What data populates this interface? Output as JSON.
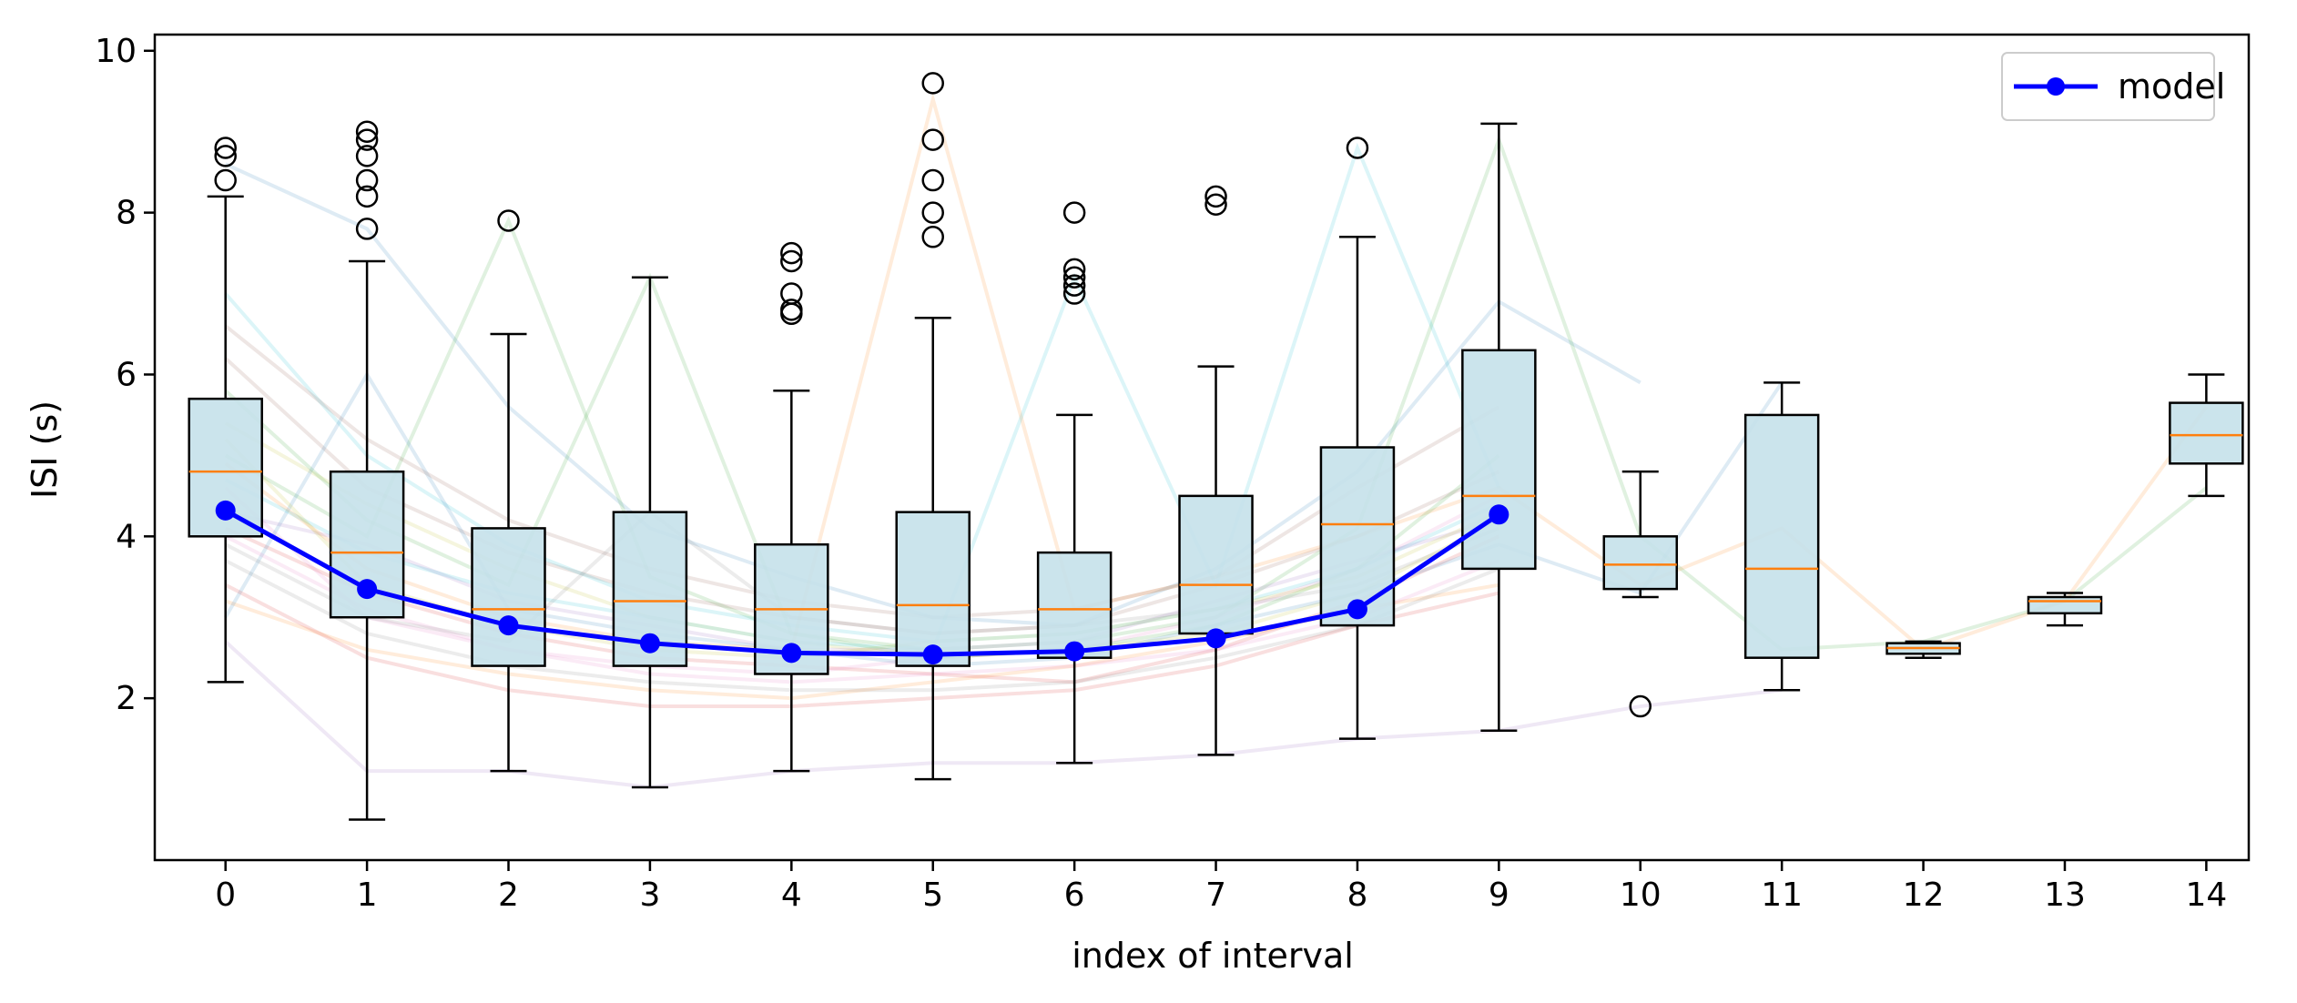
{
  "chart_data": {
    "type": "box",
    "xlabel": "index of interval",
    "ylabel": "ISI (s)",
    "x_ticks": [
      "0",
      "1",
      "2",
      "3",
      "4",
      "5",
      "6",
      "7",
      "8",
      "9",
      "10",
      "11",
      "12",
      "13",
      "14"
    ],
    "y_ticks": [
      "2",
      "4",
      "6",
      "8",
      "10"
    ],
    "xlim": [
      -0.5,
      14.3
    ],
    "ylim": [
      0.0,
      10.2
    ],
    "legend": {
      "placement": "top-right",
      "entries": [
        "model"
      ]
    },
    "colors": {
      "box_fill": "#c5e1ea",
      "median": "#ff7f0e",
      "model": "#0000ff",
      "whisker": "#000000"
    },
    "boxes": [
      {
        "x": 0,
        "whislo": 2.2,
        "q1": 4.0,
        "med": 4.8,
        "q3": 5.7,
        "whishi": 8.2,
        "fliers": [
          8.4,
          8.7,
          8.8
        ]
      },
      {
        "x": 1,
        "whislo": 0.5,
        "q1": 3.0,
        "med": 3.8,
        "q3": 4.8,
        "whishi": 7.4,
        "fliers": [
          7.8,
          8.2,
          8.4,
          8.7,
          8.9,
          9.0
        ]
      },
      {
        "x": 2,
        "whislo": 1.1,
        "q1": 2.4,
        "med": 3.1,
        "q3": 4.1,
        "whishi": 6.5,
        "fliers": [
          7.9
        ]
      },
      {
        "x": 3,
        "whislo": 0.9,
        "q1": 2.4,
        "med": 3.2,
        "q3": 4.3,
        "whishi": 7.2,
        "fliers": []
      },
      {
        "x": 4,
        "whislo": 1.1,
        "q1": 2.3,
        "med": 3.1,
        "q3": 3.9,
        "whishi": 5.8,
        "fliers": [
          6.75,
          6.8,
          7.0,
          7.4,
          7.5
        ]
      },
      {
        "x": 5,
        "whislo": 1.0,
        "q1": 2.4,
        "med": 3.15,
        "q3": 4.3,
        "whishi": 6.7,
        "fliers": [
          7.7,
          8.0,
          8.4,
          8.9,
          9.6
        ]
      },
      {
        "x": 6,
        "whislo": 1.2,
        "q1": 2.5,
        "med": 3.1,
        "q3": 3.8,
        "whishi": 5.5,
        "fliers": [
          7.0,
          7.1,
          7.2,
          7.3,
          8.0
        ]
      },
      {
        "x": 7,
        "whislo": 1.3,
        "q1": 2.8,
        "med": 3.4,
        "q3": 4.5,
        "whishi": 6.1,
        "fliers": [
          8.1,
          8.2
        ]
      },
      {
        "x": 8,
        "whislo": 1.5,
        "q1": 2.9,
        "med": 4.15,
        "q3": 5.1,
        "whishi": 7.7,
        "fliers": [
          8.8
        ]
      },
      {
        "x": 9,
        "whislo": 1.6,
        "q1": 3.6,
        "med": 4.5,
        "q3": 6.3,
        "whishi": 9.1,
        "fliers": []
      },
      {
        "x": 10,
        "whislo": 3.25,
        "q1": 3.35,
        "med": 3.65,
        "q3": 4.0,
        "whishi": 4.8,
        "fliers": [
          1.9
        ]
      },
      {
        "x": 11,
        "whislo": 2.1,
        "q1": 2.5,
        "med": 3.6,
        "q3": 5.5,
        "whishi": 5.9,
        "fliers": []
      },
      {
        "x": 12,
        "whislo": 2.5,
        "q1": 2.55,
        "med": 2.62,
        "q3": 2.68,
        "whishi": 2.7,
        "fliers": []
      },
      {
        "x": 13,
        "whislo": 2.9,
        "q1": 3.05,
        "med": 3.2,
        "q3": 3.25,
        "whishi": 3.3,
        "fliers": []
      },
      {
        "x": 14,
        "whislo": 4.5,
        "q1": 4.9,
        "med": 5.25,
        "q3": 5.65,
        "whishi": 6.0,
        "fliers": []
      }
    ],
    "series": [
      {
        "name": "model",
        "x": [
          0,
          1,
          2,
          3,
          4,
          5,
          6,
          7,
          8,
          9
        ],
        "values": [
          4.32,
          3.35,
          2.9,
          2.68,
          2.56,
          2.54,
          2.58,
          2.74,
          3.1,
          4.27
        ]
      }
    ],
    "background_traces": [
      {
        "color": "#1f77b4",
        "values": [
          8.6,
          7.8,
          5.6,
          4.1,
          3.5,
          3.0,
          2.9,
          3.6,
          4.8,
          6.9,
          5.9
        ]
      },
      {
        "color": "#ff7f0e",
        "values": [
          3.2,
          2.6,
          2.3,
          2.1,
          2.0,
          2.2,
          2.4,
          2.7,
          3.1,
          3.4
        ]
      },
      {
        "color": "#2ca02c",
        "values": [
          5.0,
          4.0,
          7.9,
          3.5,
          2.8,
          2.6,
          2.7,
          3.0,
          4.1,
          8.9,
          4.0,
          2.6,
          2.7,
          3.2,
          4.6
        ]
      },
      {
        "color": "#d62728",
        "values": [
          4.1,
          3.3,
          2.8,
          2.5,
          2.4,
          2.3,
          2.2,
          2.6,
          3.2,
          4.0
        ]
      },
      {
        "color": "#9467bd",
        "values": [
          2.7,
          1.1,
          1.1,
          0.9,
          1.1,
          1.2,
          1.2,
          1.3,
          1.5,
          1.6,
          1.9,
          2.1
        ]
      },
      {
        "color": "#8c564b",
        "values": [
          6.2,
          4.6,
          3.8,
          3.3,
          3.0,
          2.8,
          2.9,
          3.4,
          4.0,
          4.8
        ]
      },
      {
        "color": "#e377c2",
        "values": [
          4.6,
          3.0,
          2.6,
          2.4,
          2.3,
          2.5,
          2.6,
          3.0,
          3.6,
          4.5
        ]
      },
      {
        "color": "#7f7f7f",
        "values": [
          3.7,
          2.8,
          2.4,
          2.2,
          2.1,
          2.1,
          2.2,
          2.5,
          2.9,
          3.6
        ]
      },
      {
        "color": "#bcbd22",
        "values": [
          5.4,
          4.4,
          3.6,
          3.0,
          2.7,
          2.5,
          2.6,
          2.8,
          3.3,
          4.2
        ]
      },
      {
        "color": "#17becf",
        "values": [
          7.0,
          5.0,
          3.9,
          3.2,
          2.9,
          2.7,
          2.8,
          3.1,
          3.6,
          4.4
        ]
      },
      {
        "color": "#1f77b4",
        "values": [
          3.0,
          6.0,
          3.1,
          2.8,
          2.6,
          2.4,
          2.5,
          2.9,
          3.3,
          3.9,
          3.3,
          5.9
        ]
      },
      {
        "color": "#ff7f0e",
        "values": [
          4.9,
          3.6,
          3.0,
          2.7,
          2.6,
          9.4,
          3.1,
          3.5,
          4.0,
          4.6,
          3.4,
          4.1,
          2.6,
          3.2,
          5.6
        ]
      },
      {
        "color": "#2ca02c",
        "values": [
          5.8,
          4.2,
          3.4,
          7.2,
          2.8,
          2.5,
          2.6,
          2.9,
          3.6,
          5.0
        ]
      },
      {
        "color": "#d62728",
        "values": [
          3.4,
          2.5,
          2.1,
          1.9,
          1.9,
          2.0,
          2.1,
          2.4,
          2.9,
          3.3
        ]
      },
      {
        "color": "#9467bd",
        "values": [
          4.3,
          3.9,
          3.2,
          2.9,
          2.6,
          2.6,
          2.7,
          3.2,
          3.7,
          4.2
        ]
      },
      {
        "color": "#8c564b",
        "values": [
          6.6,
          5.2,
          4.2,
          3.6,
          3.2,
          3.0,
          3.1,
          3.5,
          4.6,
          5.6
        ]
      },
      {
        "color": "#e377c2",
        "values": [
          4.0,
          3.1,
          2.6,
          2.3,
          2.2,
          2.3,
          2.4,
          2.6,
          3.0,
          3.7
        ]
      },
      {
        "color": "#17becf",
        "values": [
          4.7,
          3.8,
          3.3,
          3.0,
          2.7,
          2.6,
          7.2,
          3.4,
          8.8,
          4.6
        ]
      },
      {
        "color": "#bcbd22",
        "values": [
          5.2,
          3.4,
          2.9,
          2.6,
          2.5,
          2.7,
          2.8,
          3.1,
          3.5,
          4.3
        ]
      },
      {
        "color": "#7f7f7f",
        "values": [
          3.9,
          3.0,
          2.7,
          4.3,
          3.0,
          2.8,
          2.9,
          3.1,
          3.4,
          4.1
        ]
      }
    ]
  }
}
